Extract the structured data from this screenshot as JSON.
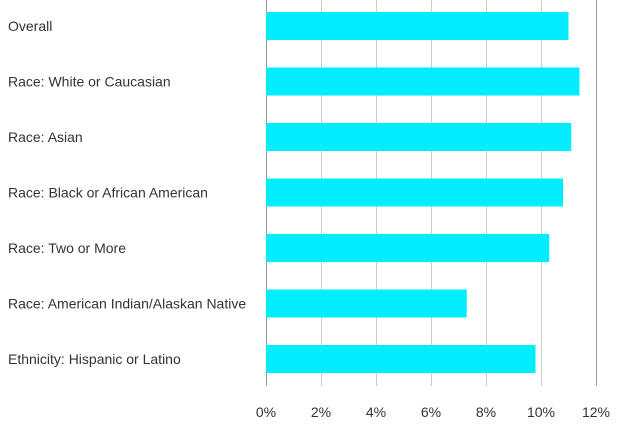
{
  "chart_data": {
    "type": "bar",
    "orientation": "horizontal",
    "categories": [
      "Overall",
      "Race: White or Caucasian",
      "Race: Asian",
      "Race: Black or African American",
      "Race: Two or More",
      "Race: American Indian/Alaskan Native",
      "Ethnicity: Hispanic or Latino"
    ],
    "values": [
      11.0,
      11.4,
      11.1,
      10.8,
      10.3,
      7.3,
      9.8
    ],
    "value_unit": "%",
    "xlim": [
      0,
      12
    ],
    "x_ticks": [
      "0%",
      "2%",
      "4%",
      "6%",
      "8%",
      "10%",
      "12%"
    ],
    "title": "",
    "xlabel": "",
    "ylabel": "",
    "grid": true,
    "legend": "none",
    "bar_color": "#00eeff"
  }
}
